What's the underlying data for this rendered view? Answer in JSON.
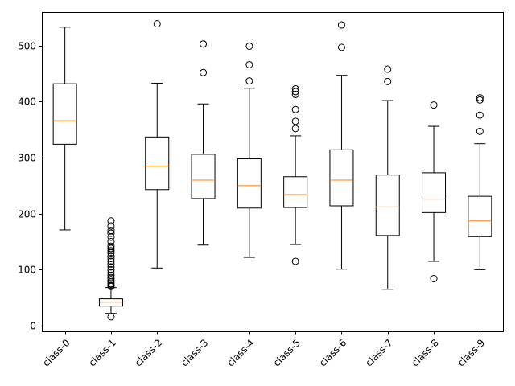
{
  "chart_data": {
    "type": "box",
    "title": "",
    "xlabel": "",
    "ylabel": "",
    "ylim": [
      -10,
      560
    ],
    "yticks": [
      0,
      100,
      200,
      300,
      400,
      500
    ],
    "grid": false,
    "median_color": "#ff7f0e",
    "box_color": "#000000",
    "categories": [
      "class-0",
      "class-1",
      "class-2",
      "class-3",
      "class-4",
      "class-5",
      "class-6",
      "class-7",
      "class-8",
      "class-9"
    ],
    "boxes": [
      {
        "label": "class-0",
        "whisker_low": 171,
        "q1": 324,
        "median": 366,
        "q3": 432,
        "whisker_high": 533,
        "outliers": []
      },
      {
        "label": "class-1",
        "whisker_low": 22,
        "q1": 35,
        "median": 42,
        "q3": 48,
        "whisker_high": 68,
        "outliers": [
          16,
          70,
          72,
          75,
          78,
          82,
          86,
          90,
          95,
          100,
          105,
          110,
          115,
          120,
          125,
          130,
          134,
          138,
          142,
          150,
          158,
          165,
          170,
          178,
          187
        ]
      },
      {
        "label": "class-2",
        "whisker_low": 103,
        "q1": 243,
        "median": 285,
        "q3": 337,
        "whisker_high": 433,
        "outliers": [
          539
        ]
      },
      {
        "label": "class-3",
        "whisker_low": 144,
        "q1": 227,
        "median": 260,
        "q3": 306,
        "whisker_high": 396,
        "outliers": [
          452,
          503
        ]
      },
      {
        "label": "class-4",
        "whisker_low": 122,
        "q1": 210,
        "median": 250,
        "q3": 298,
        "whisker_high": 424,
        "outliers": [
          437,
          466,
          499
        ]
      },
      {
        "label": "class-5",
        "whisker_low": 145,
        "q1": 211,
        "median": 234,
        "q3": 266,
        "whisker_high": 339,
        "outliers": [
          115,
          352,
          365,
          386,
          413,
          418,
          423
        ]
      },
      {
        "label": "class-6",
        "whisker_low": 101,
        "q1": 214,
        "median": 260,
        "q3": 314,
        "whisker_high": 447,
        "outliers": [
          497,
          537
        ]
      },
      {
        "label": "class-7",
        "whisker_low": 65,
        "q1": 161,
        "median": 212,
        "q3": 269,
        "whisker_high": 402,
        "outliers": [
          436,
          458
        ]
      },
      {
        "label": "class-8",
        "whisker_low": 115,
        "q1": 202,
        "median": 226,
        "q3": 273,
        "whisker_high": 356,
        "outliers": [
          84,
          394
        ]
      },
      {
        "label": "class-9",
        "whisker_low": 100,
        "q1": 159,
        "median": 187,
        "q3": 231,
        "whisker_high": 325,
        "outliers": [
          347,
          376,
          403,
          407
        ]
      }
    ]
  }
}
